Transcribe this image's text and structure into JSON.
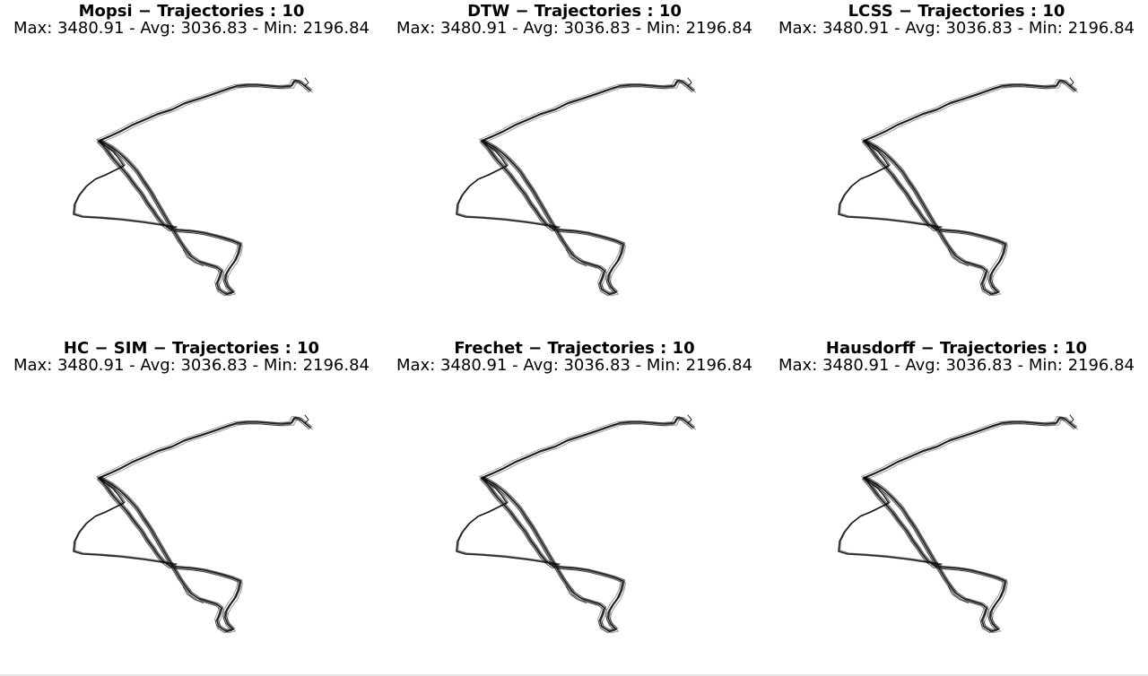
{
  "chart_data": [
    {
      "type": "line",
      "title": "Mopsi − Trajectories : 10",
      "subtitle": "Max: 3480.91 - Avg: 3036.83 - Min: 2196.84",
      "xlabel": "",
      "ylabel": "",
      "grid": false,
      "axes_visible": false,
      "trajectory_count": 10
    },
    {
      "type": "line",
      "title": "DTW − Trajectories : 10",
      "subtitle": "Max: 3480.91 - Avg: 3036.83 - Min: 2196.84",
      "xlabel": "",
      "ylabel": "",
      "grid": false,
      "axes_visible": false,
      "trajectory_count": 10
    },
    {
      "type": "line",
      "title": "LCSS − Trajectories : 10",
      "subtitle": "Max: 3480.91 - Avg: 3036.83 - Min: 2196.84",
      "xlabel": "",
      "ylabel": "",
      "grid": false,
      "axes_visible": false,
      "trajectory_count": 10
    },
    {
      "type": "line",
      "title": "HC − SIM − Trajectories : 10",
      "subtitle": "Max: 3480.91 - Avg: 3036.83 - Min: 2196.84",
      "xlabel": "",
      "ylabel": "",
      "grid": false,
      "axes_visible": false,
      "trajectory_count": 10
    },
    {
      "type": "line",
      "title": "Frechet − Trajectories : 10",
      "subtitle": "Max: 3480.91 - Avg: 3036.83 - Min: 2196.84",
      "xlabel": "",
      "ylabel": "",
      "grid": false,
      "axes_visible": false,
      "trajectory_count": 10
    },
    {
      "type": "line",
      "title": "Hausdorff − Trajectories : 10",
      "subtitle": "Max: 3480.91 - Avg: 3036.83 - Min: 2196.84",
      "xlabel": "",
      "ylabel": "",
      "grid": false,
      "axes_visible": false,
      "trajectory_count": 10
    }
  ],
  "colors": {
    "trajectory": "#000000",
    "background": "#ffffff"
  }
}
